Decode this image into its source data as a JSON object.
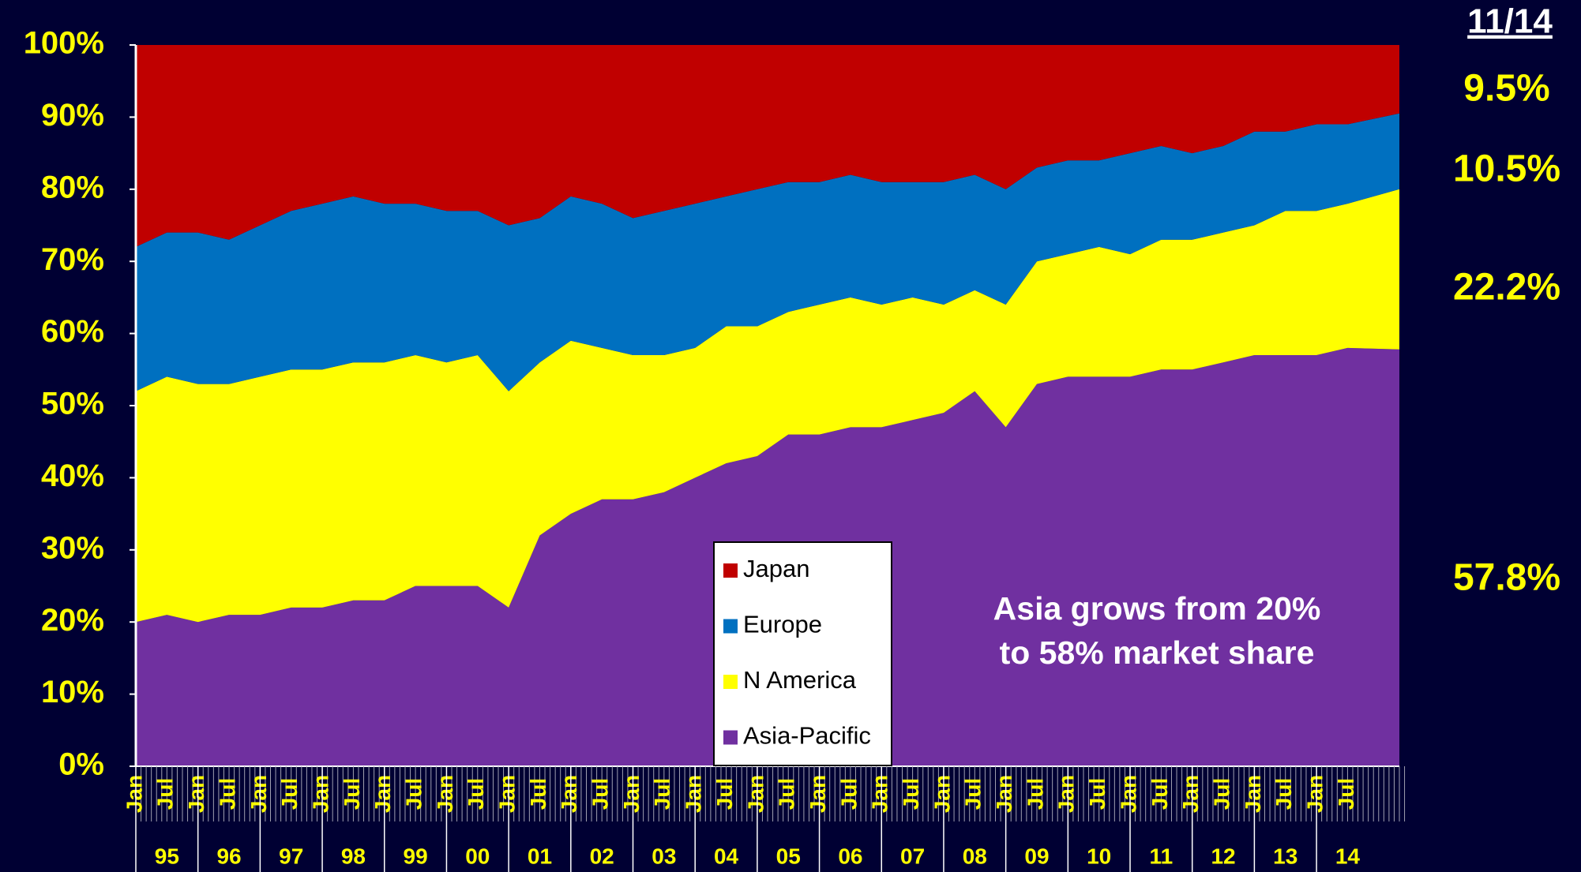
{
  "chart_data": {
    "type": "stacked-area-100",
    "header": "11/14",
    "annotation": [
      "Asia grows from 20%",
      "to 58% market share"
    ],
    "categories": [
      "Jan",
      "Jul",
      "Jan",
      "Jul",
      "Jan",
      "Jul",
      "Jan",
      "Jul",
      "Jan",
      "Jul",
      "Jan",
      "Jul",
      "Jan",
      "Jul",
      "Jan",
      "Jul",
      "Jan",
      "Jul",
      "Jan",
      "Jul",
      "Jan",
      "Jul",
      "Jan",
      "Jul",
      "Jan",
      "Jul",
      "Jan",
      "Jul",
      "Jan",
      "Jul",
      "Jan",
      "Jul",
      "Jan",
      "Jul",
      "Jan",
      "Jul",
      "Jan",
      "Jul",
      "Jan",
      "Jul",
      null
    ],
    "years": [
      "95",
      "96",
      "97",
      "98",
      "99",
      "00",
      "01",
      "02",
      "03",
      "04",
      "05",
      "06",
      "07",
      "08",
      "09",
      "10",
      "11",
      "12",
      "13",
      "14"
    ],
    "ylim": [
      0,
      100
    ],
    "yticks": [
      {
        "value": 0,
        "label": "0%"
      },
      {
        "value": 10,
        "label": "10%"
      },
      {
        "value": 20,
        "label": "20%"
      },
      {
        "value": 30,
        "label": "30%"
      },
      {
        "value": 40,
        "label": "40%"
      },
      {
        "value": 50,
        "label": "50%"
      },
      {
        "value": 60,
        "label": "60%"
      },
      {
        "value": 70,
        "label": "70%"
      },
      {
        "value": 80,
        "label": "80%"
      },
      {
        "value": 90,
        "label": "90%"
      },
      {
        "value": 100,
        "label": "100%"
      }
    ],
    "series": [
      {
        "name": "Asia-Pacific",
        "color": "#7030a0",
        "end_label": "57.8%",
        "values": [
          20,
          21,
          20,
          21,
          21,
          22,
          22,
          23,
          23,
          25,
          25,
          25,
          22,
          32,
          35,
          37,
          37,
          38,
          40,
          42,
          43,
          46,
          46,
          47,
          47,
          48,
          49,
          52,
          47,
          53,
          54,
          54,
          54,
          55,
          55,
          56,
          57,
          57,
          57,
          58,
          57.8
        ]
      },
      {
        "name": "N America",
        "color": "#ffff00",
        "end_label": "22.2%",
        "values": [
          32,
          33,
          33,
          32,
          33,
          33,
          33,
          33,
          33,
          32,
          31,
          32,
          30,
          24,
          24,
          21,
          20,
          19,
          18,
          19,
          18,
          17,
          18,
          18,
          17,
          17,
          15,
          14,
          17,
          17,
          17,
          18,
          17,
          18,
          18,
          18,
          18,
          20,
          20,
          20,
          22.2
        ]
      },
      {
        "name": "Europe",
        "color": "#0070c0",
        "end_label": "10.5%",
        "values": [
          20,
          20,
          21,
          20,
          21,
          22,
          23,
          23,
          22,
          21,
          21,
          20,
          23,
          20,
          20,
          20,
          19,
          20,
          20,
          18,
          19,
          18,
          17,
          17,
          17,
          16,
          17,
          16,
          16,
          13,
          13,
          12,
          14,
          13,
          12,
          12,
          13,
          11,
          12,
          11,
          10.5
        ]
      },
      {
        "name": "Japan",
        "color": "#c00000",
        "end_label": "9.5%",
        "values": [
          28,
          26,
          26,
          27,
          25,
          23,
          22,
          21,
          22,
          22,
          23,
          23,
          25,
          24,
          21,
          22,
          24,
          23,
          22,
          21,
          20,
          19,
          19,
          18,
          19,
          19,
          19,
          18,
          20,
          17,
          16,
          16,
          15,
          14,
          15,
          14,
          12,
          12,
          11,
          11,
          9.5
        ]
      }
    ]
  }
}
